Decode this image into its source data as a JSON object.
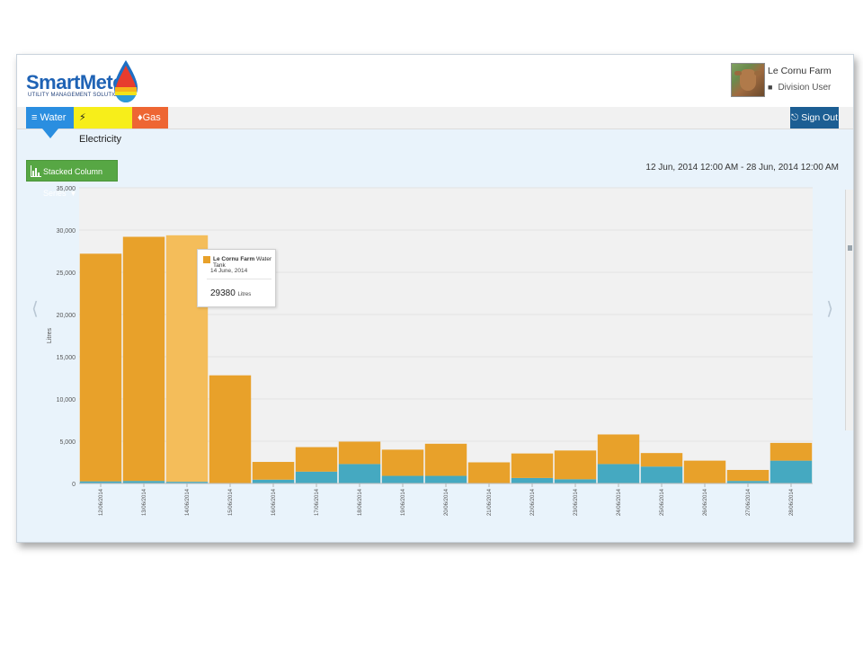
{
  "header": {
    "logo_text": "SmartMeter",
    "logo_tagline": "UTILITY MANAGEMENT SOLUTION",
    "user_name": "Le Cornu Farm",
    "user_role": "Division User"
  },
  "tabs": [
    {
      "label": "Water",
      "icon": "menu-lines-icon",
      "color": "#2a8ee0"
    },
    {
      "label": "Electricity",
      "icon": "lightning-icon",
      "color": "#f7ee1a"
    },
    {
      "label": "Gas",
      "icon": "flame-icon",
      "color": "#ee6633"
    }
  ],
  "sign_out_label": "Sign Out",
  "toolbar": {
    "series_label": "Stacked Column Series",
    "date_range": "12 Jun, 2014 12:00 AM - 28 Jun, 2014 12:00 AM"
  },
  "tooltip": {
    "series_bold": "Le Cornu Farm",
    "series_rest": "Water Tank",
    "date": "14 June, 2014",
    "value": "29380",
    "unit": "Litres"
  },
  "chart_data": {
    "type": "bar",
    "stacked": true,
    "ylabel": "Litres",
    "ylim": [
      0,
      35000
    ],
    "yticks": [
      "0",
      "5,000",
      "10,000",
      "15,000",
      "20,000",
      "25,000",
      "30,000",
      "35,000"
    ],
    "categories": [
      "12/06/2014",
      "13/06/2014",
      "14/06/2014",
      "15/06/2014",
      "16/06/2014",
      "17/06/2014",
      "18/06/2014",
      "19/06/2014",
      "20/06/2014",
      "21/06/2014",
      "22/06/2014",
      "23/06/2014",
      "24/06/2014",
      "25/06/2014",
      "26/06/2014",
      "27/06/2014",
      "28/06/2014"
    ],
    "series": [
      {
        "color": "#45a9c1",
        "values": [
          250,
          300,
          200,
          0,
          450,
          1400,
          2300,
          900,
          900,
          0,
          650,
          500,
          2300,
          2000,
          0,
          300,
          2700
        ]
      },
      {
        "color": "#e8a12a",
        "values": [
          26950,
          28900,
          29180,
          12800,
          2100,
          2900,
          2650,
          3100,
          3800,
          2500,
          2900,
          3400,
          3500,
          1600,
          2700,
          1300,
          2100
        ]
      }
    ],
    "highlight_index": 2,
    "highlight_color": "#f4bd5a",
    "grid": true
  }
}
